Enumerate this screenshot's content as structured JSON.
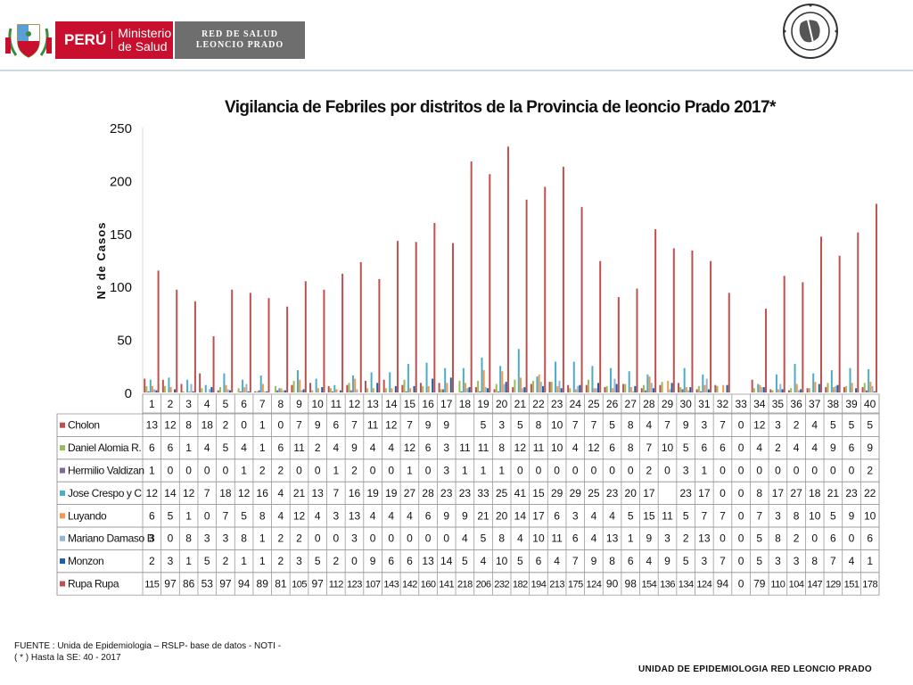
{
  "header": {
    "peru_label": "PERÚ",
    "ministerio_line1": "Ministerio",
    "ministerio_line2": "de Salud",
    "red_line1": "RED DE SALUD",
    "red_line2": "LEONCIO PRADO",
    "logo_left_icon": "coat-of-arms-icon",
    "logo_right_icon": "epidemiology-network-seal-icon"
  },
  "chart_data": {
    "type": "bar",
    "title": "Vigilancia de Febriles  por distritos de la Provincia de  leoncio Prado 2017*",
    "ylabel": "N° de Casos",
    "xlabel": "",
    "ylim": [
      0,
      250
    ],
    "yticks": [
      0,
      50,
      100,
      150,
      200,
      250
    ],
    "categories": [
      "1",
      "2",
      "3",
      "4",
      "5",
      "6",
      "7",
      "8",
      "9",
      "10",
      "11",
      "12",
      "13",
      "14",
      "15",
      "16",
      "17",
      "18",
      "19",
      "20",
      "21",
      "22",
      "23",
      "24",
      "25",
      "26",
      "27",
      "28",
      "29",
      "30",
      "31",
      "32",
      "33",
      "34",
      "35",
      "36",
      "37",
      "38",
      "39",
      "40"
    ],
    "series": [
      {
        "name": "Cholon",
        "color": "#c0504d",
        "values": [
          13,
          12,
          8,
          18,
          2,
          0,
          1,
          0,
          7,
          9,
          6,
          7,
          11,
          12,
          7,
          9,
          9,
          null,
          5,
          3,
          5,
          8,
          10,
          7,
          7,
          5,
          8,
          4,
          7,
          9,
          3,
          7,
          0,
          12,
          3,
          2,
          4,
          5,
          5,
          5
        ]
      },
      {
        "name": "Daniel Alomia R.",
        "color": "#9bbb59",
        "values": [
          6,
          6,
          1,
          4,
          5,
          4,
          1,
          6,
          11,
          2,
          4,
          9,
          4,
          4,
          12,
          6,
          3,
          11,
          11,
          8,
          12,
          11,
          10,
          4,
          12,
          6,
          8,
          7,
          10,
          5,
          6,
          6,
          0,
          4,
          2,
          4,
          4,
          9,
          6,
          9
        ]
      },
      {
        "name": "Hermilio Valdizan",
        "color": "#8064a2",
        "values": [
          1,
          0,
          0,
          0,
          0,
          1,
          2,
          2,
          0,
          0,
          1,
          2,
          0,
          0,
          1,
          0,
          3,
          1,
          1,
          1,
          0,
          0,
          0,
          0,
          0,
          0,
          0,
          2,
          0,
          3,
          1,
          0,
          0,
          0,
          0,
          0,
          0,
          0,
          0,
          2
        ]
      },
      {
        "name": "Jose Crespo y C",
        "color": "#4bacc6",
        "values": [
          12,
          14,
          12,
          7,
          18,
          12,
          16,
          4,
          21,
          13,
          7,
          16,
          19,
          19,
          27,
          28,
          23,
          23,
          33,
          25,
          41,
          15,
          29,
          29,
          25,
          23,
          20,
          17,
          null,
          23,
          17,
          0,
          0,
          8,
          17,
          27,
          18,
          21,
          23,
          22
        ]
      },
      {
        "name": "Luyando",
        "color": "#f79646",
        "values": [
          6,
          5,
          1,
          0,
          7,
          5,
          8,
          4,
          12,
          4,
          3,
          13,
          4,
          4,
          4,
          6,
          9,
          9,
          21,
          20,
          14,
          17,
          6,
          3,
          4,
          4,
          5,
          15,
          11,
          5,
          7,
          7,
          0,
          7,
          3,
          8,
          10,
          5,
          9,
          10
        ]
      },
      {
        "name": "Mariano Damaso B",
        "color": "#95b3d7",
        "values": [
          3,
          0,
          8,
          3,
          3,
          8,
          1,
          2,
          2,
          0,
          0,
          3,
          0,
          0,
          0,
          0,
          0,
          4,
          5,
          8,
          4,
          10,
          11,
          6,
          4,
          13,
          1,
          9,
          3,
          2,
          13,
          0,
          0,
          5,
          8,
          2,
          0,
          6,
          0,
          6
        ]
      },
      {
        "name": "Monzon",
        "color": "#1f5f9e",
        "values": [
          2,
          3,
          1,
          5,
          2,
          1,
          1,
          2,
          3,
          5,
          2,
          0,
          9,
          6,
          6,
          13,
          14,
          5,
          4,
          10,
          5,
          6,
          4,
          7,
          9,
          8,
          6,
          4,
          9,
          5,
          3,
          7,
          0,
          5,
          3,
          3,
          8,
          7,
          4,
          1
        ]
      },
      {
        "name": "Rupa Rupa",
        "color": "#c0504d",
        "values": [
          115,
          97,
          86,
          53,
          97,
          94,
          89,
          81,
          105,
          97,
          112,
          123,
          107,
          143,
          142,
          160,
          141,
          218,
          206,
          232,
          182,
          194,
          213,
          175,
          124,
          90,
          98,
          154,
          136,
          134,
          124,
          94,
          0,
          79,
          110,
          104,
          147,
          129,
          151,
          178
        ]
      }
    ]
  },
  "footer": {
    "source_line1": "FUENTE :  Unida de Epidemiologia – RSLP- base de datos - NOTI  -",
    "source_line2": "( * ) Hasta la SE: 40 - 2017",
    "unit_label": "UNIDAD  DE EPIDEMIOLOGIA RED LEONCIO PRADO"
  }
}
